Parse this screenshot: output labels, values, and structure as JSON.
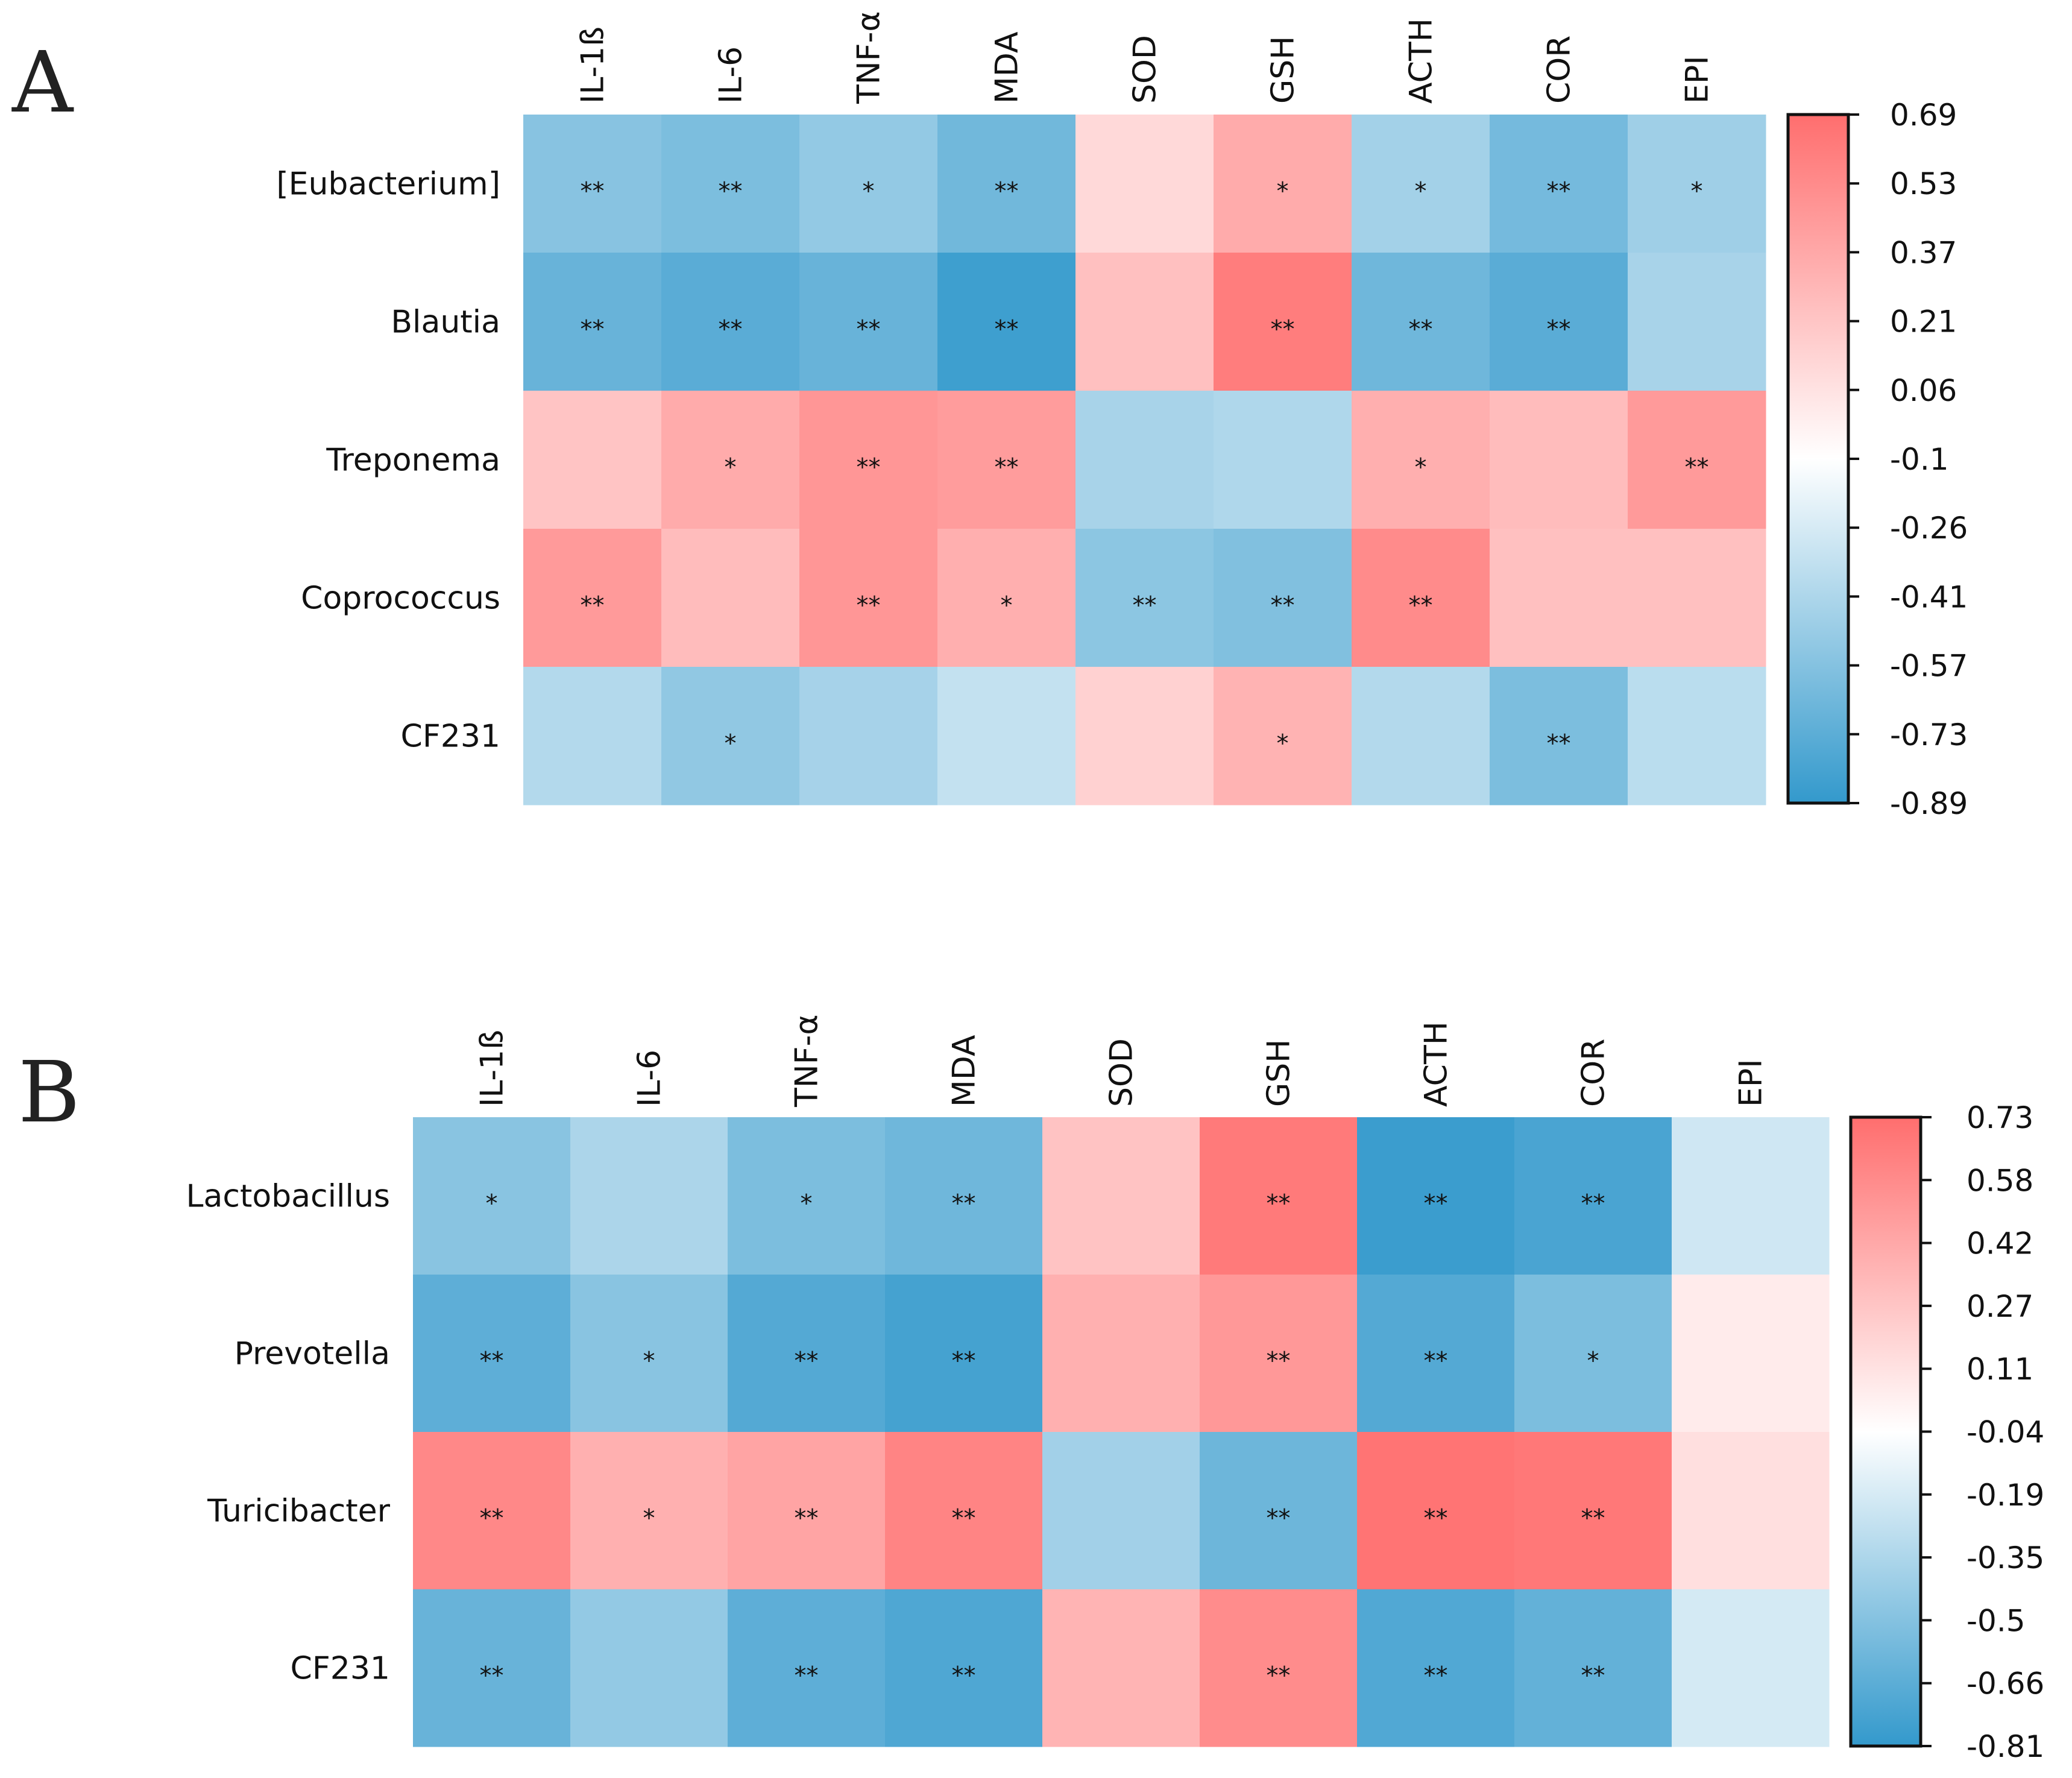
{
  "colors": {
    "negative": "#3399cc",
    "neutral": "#ffffff",
    "positive": "#ff6e6e"
  },
  "chart_data": [
    {
      "type": "heatmap",
      "panel": "A",
      "columns": [
        "IL-1ß",
        "IL-6",
        "TNF-α",
        "MDA",
        "SOD",
        "GSH",
        "ACTH",
        "COR",
        "EPI"
      ],
      "rows": [
        "[Eubacterium]",
        "Blautia",
        "Treponema",
        "Coprococcus",
        "CF231"
      ],
      "values": [
        [
          -0.52,
          -0.57,
          -0.47,
          -0.62,
          0.18,
          0.4,
          -0.4,
          -0.6,
          -0.42
        ],
        [
          -0.66,
          -0.72,
          -0.66,
          -0.84,
          0.3,
          0.62,
          -0.63,
          -0.72,
          -0.38
        ],
        [
          0.28,
          0.4,
          0.5,
          0.47,
          -0.38,
          -0.35,
          0.38,
          0.32,
          0.48
        ],
        [
          0.48,
          0.32,
          0.5,
          0.38,
          -0.5,
          -0.55,
          0.55,
          0.3,
          0.3
        ],
        [
          -0.33,
          -0.48,
          -0.39,
          -0.26,
          0.22,
          0.36,
          -0.33,
          -0.57,
          -0.3
        ]
      ],
      "significance": [
        [
          "**",
          "**",
          "*",
          "**",
          "",
          "*",
          "*",
          "**",
          "*"
        ],
        [
          "**",
          "**",
          "**",
          "**",
          "",
          "**",
          "**",
          "**",
          ""
        ],
        [
          "",
          "*",
          "**",
          "**",
          "",
          "",
          "*",
          "",
          "**"
        ],
        [
          "**",
          "",
          "**",
          "*",
          "**",
          "**",
          "**",
          "",
          ""
        ],
        [
          "",
          "*",
          "",
          "",
          "",
          "*",
          "",
          "**",
          ""
        ]
      ],
      "range": [
        -0.89,
        0.69
      ],
      "colorbar_ticks": [
        "0.69",
        "0.53",
        "0.37",
        "0.21",
        "0.06",
        "-0.1",
        "-0.26",
        "-0.41",
        "-0.57",
        "-0.73",
        "-0.89"
      ]
    },
    {
      "type": "heatmap",
      "panel": "B",
      "columns": [
        "IL-1ß",
        "IL-6",
        "TNF-α",
        "MDA",
        "SOD",
        "GSH",
        "ACTH",
        "COR",
        "EPI"
      ],
      "rows": [
        "Lactobacillus",
        "Prevotella",
        "Turicibacter",
        "CF231"
      ],
      "values": [
        [
          -0.47,
          -0.33,
          -0.52,
          -0.57,
          0.3,
          0.67,
          -0.78,
          -0.72,
          -0.19
        ],
        [
          -0.64,
          -0.47,
          -0.68,
          -0.74,
          0.4,
          0.52,
          -0.68,
          -0.52,
          0.1
        ],
        [
          0.6,
          0.4,
          0.46,
          0.62,
          -0.37,
          -0.58,
          0.7,
          0.68,
          0.16
        ],
        [
          -0.6,
          -0.43,
          -0.64,
          -0.7,
          0.38,
          0.58,
          -0.69,
          -0.62,
          -0.17
        ]
      ],
      "significance": [
        [
          "*",
          "",
          "*",
          "**",
          "",
          "**",
          "**",
          "**",
          ""
        ],
        [
          "**",
          "*",
          "**",
          "**",
          "",
          "**",
          "**",
          "*",
          ""
        ],
        [
          "**",
          "*",
          "**",
          "**",
          "",
          "**",
          "**",
          "**",
          ""
        ],
        [
          "**",
          "",
          "**",
          "**",
          "",
          "**",
          "**",
          "**",
          ""
        ]
      ],
      "range": [
        -0.81,
        0.73
      ],
      "colorbar_ticks": [
        "0.73",
        "0.58",
        "0.42",
        "0.27",
        "0.11",
        "-0.04",
        "-0.19",
        "-0.35",
        "-0.5",
        "-0.66",
        "-0.81"
      ]
    }
  ]
}
